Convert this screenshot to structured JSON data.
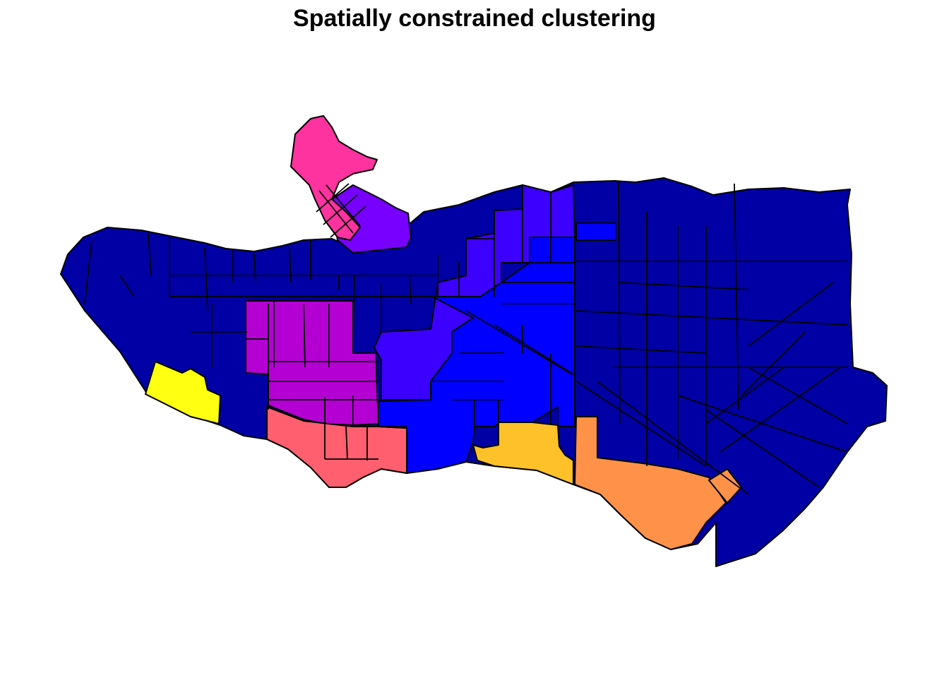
{
  "title": "Spatially constrained clustering",
  "colors": {
    "navy": "#0000A5",
    "blue": "#0000FF",
    "indigo": "#3C00FF",
    "violet": "#7700FF",
    "purple": "#B400D2",
    "pink": "#FF33A0",
    "salmon": "#FF5F6E",
    "orange": "#FF9248",
    "amber": "#FFC12A",
    "yellow": "#FFFF11"
  }
}
